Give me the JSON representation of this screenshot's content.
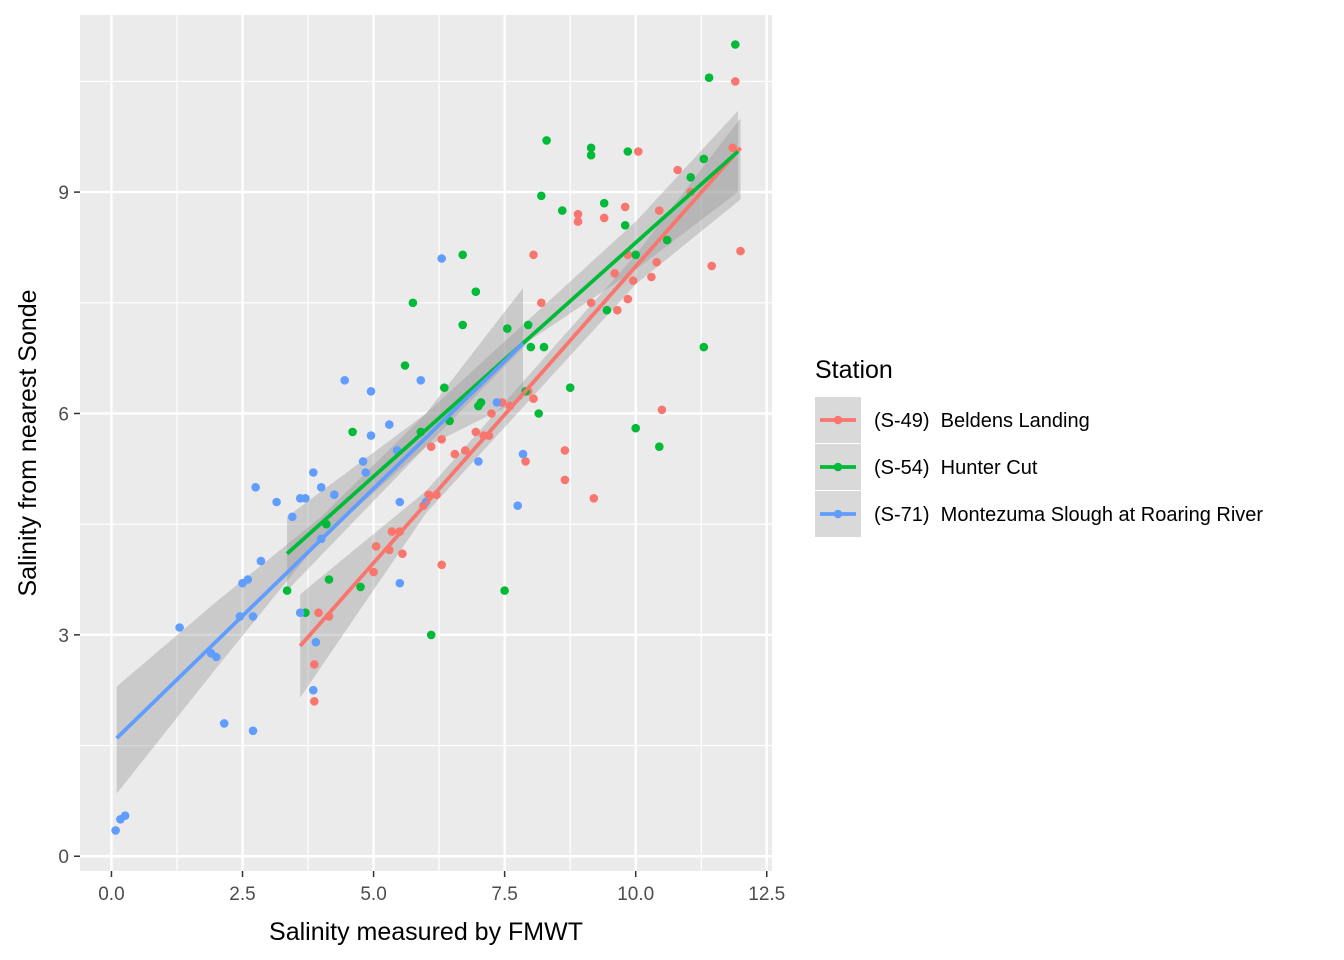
{
  "chart_data": {
    "type": "scatter",
    "xlabel": "Salinity measured by FMWT",
    "ylabel": "Salinity from nearest Sonde",
    "xlim": [
      -0.6,
      12.6
    ],
    "ylim": [
      -0.2,
      11.4
    ],
    "x_ticks": [
      0.0,
      2.5,
      5.0,
      7.5,
      10.0,
      12.5
    ],
    "x_tick_labels": [
      "0.0",
      "2.5",
      "5.0",
      "7.5",
      "10.0",
      "12.5"
    ],
    "y_ticks": [
      0,
      3,
      6,
      9
    ],
    "y_tick_labels": [
      "0",
      "3",
      "6",
      "9"
    ],
    "grid": true,
    "legend": {
      "title": "Station",
      "position": "right"
    },
    "series": [
      {
        "name": "(S-49)  Beldens Landing",
        "color": "#F8766D",
        "points": [
          [
            3.87,
            2.1
          ],
          [
            3.87,
            2.6
          ],
          [
            3.95,
            3.3
          ],
          [
            4.15,
            3.25
          ],
          [
            5.0,
            3.85
          ],
          [
            5.05,
            4.2
          ],
          [
            5.3,
            4.15
          ],
          [
            5.35,
            4.4
          ],
          [
            5.55,
            4.1
          ],
          [
            5.5,
            4.4
          ],
          [
            5.95,
            4.75
          ],
          [
            6.05,
            4.9
          ],
          [
            6.2,
            4.9
          ],
          [
            6.3,
            3.95
          ],
          [
            6.3,
            5.65
          ],
          [
            6.1,
            5.55
          ],
          [
            6.55,
            5.45
          ],
          [
            6.75,
            5.5
          ],
          [
            6.95,
            5.75
          ],
          [
            7.1,
            5.7
          ],
          [
            7.2,
            5.7
          ],
          [
            7.25,
            6.0
          ],
          [
            7.45,
            6.15
          ],
          [
            7.6,
            6.1
          ],
          [
            7.9,
            5.35
          ],
          [
            7.95,
            6.3
          ],
          [
            8.05,
            6.2
          ],
          [
            8.05,
            8.15
          ],
          [
            8.2,
            7.5
          ],
          [
            8.65,
            5.1
          ],
          [
            8.65,
            5.5
          ],
          [
            8.9,
            8.6
          ],
          [
            8.9,
            8.7
          ],
          [
            9.15,
            7.5
          ],
          [
            9.2,
            4.85
          ],
          [
            9.4,
            8.65
          ],
          [
            9.6,
            7.9
          ],
          [
            9.65,
            7.4
          ],
          [
            9.8,
            8.8
          ],
          [
            9.85,
            7.55
          ],
          [
            9.85,
            8.15
          ],
          [
            9.95,
            7.8
          ],
          [
            10.05,
            9.55
          ],
          [
            10.3,
            7.85
          ],
          [
            10.4,
            8.05
          ],
          [
            10.45,
            8.75
          ],
          [
            10.5,
            6.05
          ],
          [
            10.8,
            9.3
          ],
          [
            11.05,
            9.0
          ],
          [
            11.45,
            8.0
          ],
          [
            11.85,
            9.6
          ],
          [
            11.9,
            10.5
          ],
          [
            12.0,
            8.2
          ]
        ],
        "fit": [
          [
            3.6,
            2.85
          ],
          [
            12.0,
            9.6
          ]
        ],
        "band": {
          "x": [
            3.6,
            6.0,
            8.0,
            10.0,
            12.0
          ],
          "upper": [
            3.55,
            4.95,
            6.55,
            8.15,
            10.0
          ],
          "lower": [
            2.15,
            4.65,
            6.2,
            7.75,
            8.9
          ]
        }
      },
      {
        "name": "(S-54)  Hunter Cut",
        "color": "#00BA38",
        "points": [
          [
            3.35,
            3.6
          ],
          [
            3.7,
            3.3
          ],
          [
            4.1,
            4.5
          ],
          [
            4.15,
            3.75
          ],
          [
            4.6,
            5.75
          ],
          [
            4.75,
            3.65
          ],
          [
            5.6,
            6.65
          ],
          [
            5.75,
            7.5
          ],
          [
            5.9,
            5.75
          ],
          [
            6.1,
            3.0
          ],
          [
            6.35,
            6.35
          ],
          [
            6.45,
            5.9
          ],
          [
            6.7,
            7.2
          ],
          [
            6.7,
            8.15
          ],
          [
            6.95,
            7.65
          ],
          [
            7.0,
            6.1
          ],
          [
            7.05,
            6.15
          ],
          [
            7.5,
            3.6
          ],
          [
            7.55,
            7.15
          ],
          [
            7.9,
            6.3
          ],
          [
            7.95,
            7.2
          ],
          [
            8.0,
            6.9
          ],
          [
            8.15,
            6.0
          ],
          [
            8.2,
            8.95
          ],
          [
            8.25,
            6.9
          ],
          [
            8.3,
            9.7
          ],
          [
            8.6,
            8.75
          ],
          [
            8.75,
            6.35
          ],
          [
            9.15,
            9.5
          ],
          [
            9.15,
            9.6
          ],
          [
            9.4,
            8.85
          ],
          [
            9.45,
            7.4
          ],
          [
            9.8,
            8.55
          ],
          [
            9.85,
            9.55
          ],
          [
            10.0,
            5.8
          ],
          [
            10.0,
            8.15
          ],
          [
            10.45,
            5.55
          ],
          [
            10.6,
            8.35
          ],
          [
            11.05,
            9.2
          ],
          [
            11.3,
            6.9
          ],
          [
            11.3,
            9.45
          ],
          [
            11.4,
            10.55
          ],
          [
            11.9,
            11.0
          ]
        ],
        "fit": [
          [
            3.35,
            4.1
          ],
          [
            11.95,
            9.55
          ]
        ],
        "band": {
          "x": [
            3.35,
            6.0,
            8.0,
            10.0,
            11.95
          ],
          "upper": [
            4.6,
            6.0,
            7.3,
            8.6,
            10.1
          ],
          "lower": [
            3.6,
            5.55,
            7.0,
            7.95,
            9.0
          ]
        }
      },
      {
        "name": "(S-71)  Montezuma Slough at Roaring River",
        "color": "#619CFF",
        "points": [
          [
            0.08,
            0.35
          ],
          [
            0.17,
            0.5
          ],
          [
            0.26,
            0.55
          ],
          [
            1.3,
            3.1
          ],
          [
            1.9,
            2.75
          ],
          [
            2.0,
            2.7
          ],
          [
            2.15,
            1.8
          ],
          [
            2.45,
            3.25
          ],
          [
            2.5,
            3.7
          ],
          [
            2.6,
            3.75
          ],
          [
            2.7,
            1.7
          ],
          [
            2.7,
            3.25
          ],
          [
            2.75,
            5.0
          ],
          [
            2.85,
            4.0
          ],
          [
            3.15,
            4.8
          ],
          [
            3.45,
            4.6
          ],
          [
            3.6,
            3.3
          ],
          [
            3.6,
            4.85
          ],
          [
            3.7,
            4.85
          ],
          [
            3.85,
            2.25
          ],
          [
            3.85,
            5.2
          ],
          [
            3.9,
            2.9
          ],
          [
            4.0,
            4.3
          ],
          [
            4.0,
            5.0
          ],
          [
            4.25,
            4.9
          ],
          [
            4.45,
            6.45
          ],
          [
            4.8,
            5.35
          ],
          [
            4.85,
            5.2
          ],
          [
            4.95,
            5.7
          ],
          [
            4.95,
            6.3
          ],
          [
            5.3,
            5.85
          ],
          [
            5.45,
            5.5
          ],
          [
            5.5,
            3.7
          ],
          [
            5.5,
            4.8
          ],
          [
            5.9,
            6.45
          ],
          [
            6.0,
            4.8
          ],
          [
            6.3,
            8.1
          ],
          [
            7.0,
            5.35
          ],
          [
            7.35,
            6.15
          ],
          [
            7.75,
            4.75
          ],
          [
            7.85,
            5.45
          ]
        ],
        "fit": [
          [
            0.1,
            1.6
          ],
          [
            7.85,
            6.95
          ]
        ],
        "band": {
          "x": [
            0.1,
            2.0,
            4.0,
            6.0,
            7.85
          ],
          "upper": [
            2.3,
            3.45,
            4.6,
            6.0,
            7.7
          ],
          "lower": [
            0.85,
            2.55,
            4.3,
            5.55,
            6.2
          ]
        }
      }
    ]
  }
}
